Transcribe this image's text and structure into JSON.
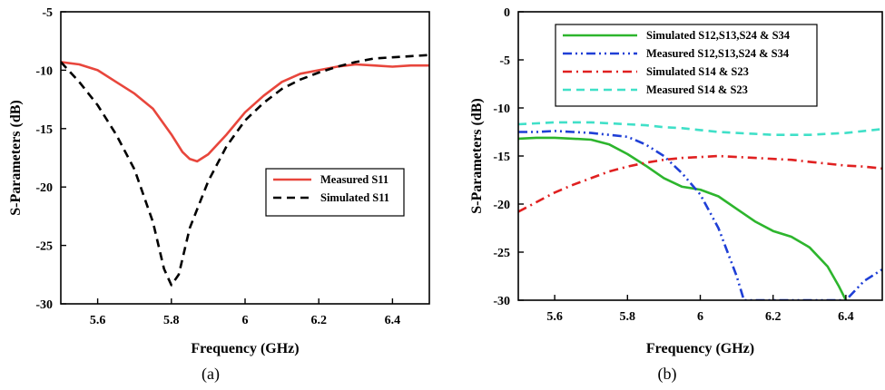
{
  "chart_data": [
    {
      "type": "line",
      "caption": "(a)",
      "xlabel": "Frequency (GHz)",
      "ylabel": "S-Parameters (dB)",
      "xlim": [
        5.5,
        6.5
      ],
      "ylim": [
        -30,
        -5
      ],
      "xticks": [
        5.6,
        5.8,
        6.0,
        6.2,
        6.4
      ],
      "yticks": [
        -5,
        -10,
        -15,
        -20,
        -25,
        -30
      ],
      "grid": false,
      "legend_position": "center-right",
      "series": [
        {
          "name": "Measured S11",
          "color": "#e8463c",
          "dash": "solid",
          "x": [
            5.5,
            5.55,
            5.6,
            5.65,
            5.7,
            5.75,
            5.8,
            5.83,
            5.85,
            5.87,
            5.9,
            5.95,
            6.0,
            6.05,
            6.1,
            6.15,
            6.2,
            6.25,
            6.3,
            6.35,
            6.4,
            6.45,
            6.5
          ],
          "y": [
            -9.3,
            -9.5,
            -10.0,
            -11.0,
            -12.0,
            -13.3,
            -15.5,
            -17.0,
            -17.6,
            -17.8,
            -17.2,
            -15.5,
            -13.6,
            -12.2,
            -11.0,
            -10.3,
            -10.0,
            -9.7,
            -9.5,
            -9.6,
            -9.7,
            -9.6,
            -9.6
          ]
        },
        {
          "name": "Simulated S11",
          "color": "#000000",
          "dash": "dashed",
          "x": [
            5.5,
            5.55,
            5.6,
            5.65,
            5.7,
            5.75,
            5.78,
            5.8,
            5.82,
            5.85,
            5.9,
            5.95,
            6.0,
            6.05,
            6.1,
            6.15,
            6.2,
            6.25,
            6.3,
            6.35,
            6.4,
            6.45,
            6.5
          ],
          "y": [
            -9.3,
            -11.0,
            -13.0,
            -15.5,
            -18.5,
            -23.0,
            -27.0,
            -28.4,
            -27.5,
            -23.5,
            -19.5,
            -16.5,
            -14.3,
            -12.8,
            -11.6,
            -10.8,
            -10.2,
            -9.7,
            -9.3,
            -9.0,
            -8.9,
            -8.8,
            -8.7
          ]
        }
      ]
    },
    {
      "type": "line",
      "caption": "(b)",
      "xlabel": "Frequency (GHz)",
      "ylabel": "S-Parameters (dB)",
      "xlim": [
        5.5,
        6.5
      ],
      "ylim": [
        -30,
        0
      ],
      "xticks": [
        5.6,
        5.8,
        6.0,
        6.2,
        6.4
      ],
      "yticks": [
        0,
        -5,
        -10,
        -15,
        -20,
        -25,
        -30
      ],
      "grid": false,
      "legend_position": "top",
      "series": [
        {
          "name": "Simulated S12,S13,S24 & S34",
          "color": "#2db52d",
          "dash": "solid",
          "x": [
            5.5,
            5.55,
            5.6,
            5.65,
            5.7,
            5.75,
            5.8,
            5.85,
            5.9,
            5.95,
            6.0,
            6.05,
            6.1,
            6.15,
            6.2,
            6.25,
            6.3,
            6.35,
            6.38,
            6.4
          ],
          "y": [
            -13.2,
            -13.1,
            -13.1,
            -13.2,
            -13.3,
            -13.8,
            -14.8,
            -16.0,
            -17.3,
            -18.2,
            -18.5,
            -19.2,
            -20.5,
            -21.8,
            -22.8,
            -23.4,
            -24.5,
            -26.5,
            -28.5,
            -30.0
          ]
        },
        {
          "name": "Measured S12,S13,S24 & S34",
          "color": "#1f3fd6",
          "dash": "dash-dot-dot",
          "x": [
            5.5,
            5.55,
            5.6,
            5.65,
            5.7,
            5.75,
            5.8,
            5.85,
            5.9,
            5.95,
            6.0,
            6.05,
            6.1,
            6.12,
            6.4,
            6.45,
            6.5
          ],
          "y": [
            -12.5,
            -12.5,
            -12.4,
            -12.5,
            -12.6,
            -12.8,
            -13.0,
            -13.8,
            -15.0,
            -16.8,
            -19.0,
            -22.5,
            -27.5,
            -30.0,
            -30.0,
            -28.0,
            -26.8
          ]
        },
        {
          "name": "Simulated S14 & S23",
          "color": "#e02020",
          "dash": "dash-dot",
          "x": [
            5.5,
            5.55,
            5.6,
            5.65,
            5.7,
            5.75,
            5.8,
            5.85,
            5.9,
            5.95,
            6.0,
            6.05,
            6.1,
            6.15,
            6.2,
            6.25,
            6.3,
            6.35,
            6.4,
            6.45,
            6.5
          ],
          "y": [
            -20.8,
            -19.8,
            -18.8,
            -18.0,
            -17.3,
            -16.6,
            -16.1,
            -15.7,
            -15.4,
            -15.2,
            -15.1,
            -15.0,
            -15.1,
            -15.2,
            -15.3,
            -15.4,
            -15.6,
            -15.8,
            -16.0,
            -16.1,
            -16.3
          ]
        },
        {
          "name": "Measured S14 & S23",
          "color": "#40e0c8",
          "dash": "dashed",
          "x": [
            5.5,
            5.55,
            5.6,
            5.65,
            5.7,
            5.75,
            5.8,
            5.85,
            5.9,
            5.95,
            6.0,
            6.05,
            6.1,
            6.15,
            6.2,
            6.25,
            6.3,
            6.35,
            6.4,
            6.45,
            6.5
          ],
          "y": [
            -11.7,
            -11.6,
            -11.5,
            -11.5,
            -11.5,
            -11.6,
            -11.7,
            -11.8,
            -12.0,
            -12.1,
            -12.3,
            -12.5,
            -12.6,
            -12.7,
            -12.8,
            -12.8,
            -12.8,
            -12.7,
            -12.6,
            -12.4,
            -12.2
          ]
        }
      ]
    }
  ]
}
